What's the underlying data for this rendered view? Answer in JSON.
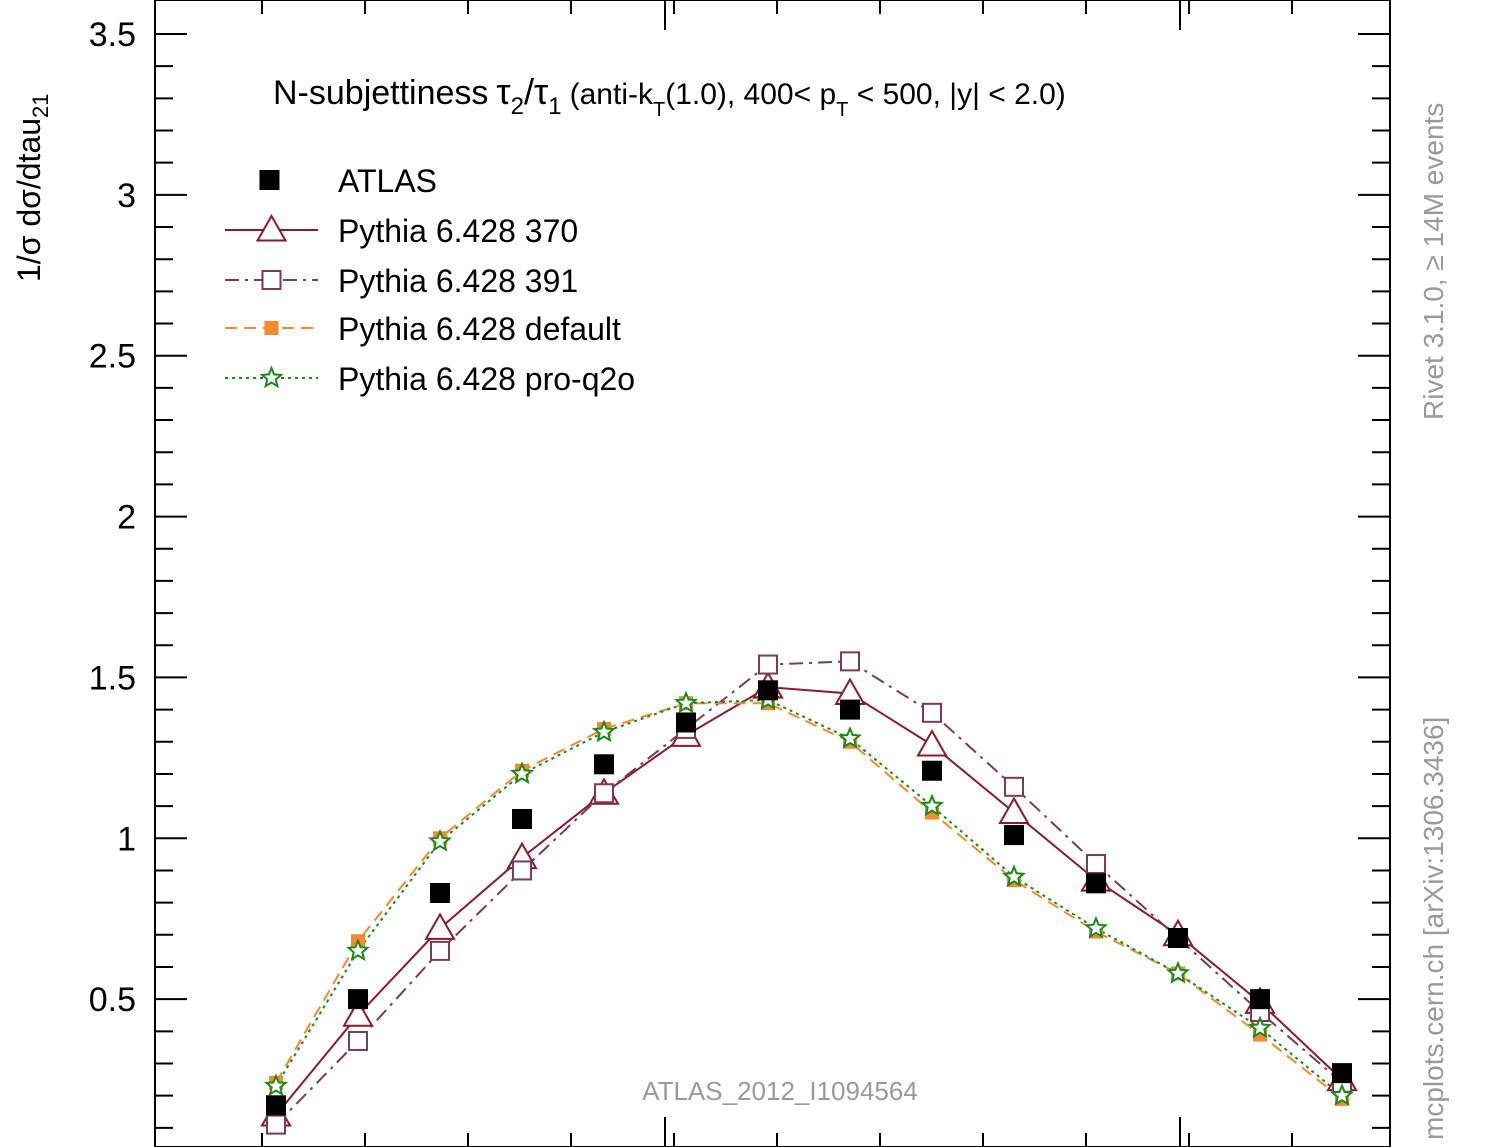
{
  "chart_data": {
    "type": "line",
    "title": "N-subjettiness",
    "title_detail": "(anti-k",
    "title_detail_2": "(1.0), 400< p",
    "title_detail_3": " < 500, |y| < 2.0)",
    "title_sub_T": "T",
    "title_tau2": "τ",
    "title_tau2_sub": "2",
    "title_slash": "/",
    "title_tau1": "τ",
    "title_tau1_sub": "1",
    "ylabel": "1/σ dσ/dtau",
    "ylabel_sub": "21",
    "ylim": [
      0.0,
      3.5
    ],
    "xlim": [
      0.0,
      1.0
    ],
    "y_ticks": [
      {
        "value": 0.5,
        "label": "0.5"
      },
      {
        "value": 1.0,
        "label": "1"
      },
      {
        "value": 1.5,
        "label": "1.5"
      },
      {
        "value": 2.0,
        "label": "2"
      },
      {
        "value": 2.5,
        "label": "2.5"
      },
      {
        "value": 3.0,
        "label": "3"
      },
      {
        "value": 3.5,
        "label": "3.5"
      }
    ],
    "legend_position": "top-left",
    "annotation": "ATLAS_2012_I1094564",
    "side_text_top": "Rivet 3.1.0, ≥ 14M events",
    "side_text_bottom": "mcplots.cern.ch [arXiv:1306.3436]",
    "series": [
      {
        "name": "ATLAS",
        "style": "data-square",
        "color": "#000000",
        "x": [
          0.05,
          0.1,
          0.15,
          0.2,
          0.25,
          0.3,
          0.35,
          0.4,
          0.45,
          0.5,
          0.55,
          0.6,
          0.65,
          0.7
        ],
        "values": [
          0.17,
          0.5,
          0.83,
          1.06,
          1.23,
          1.36,
          1.46,
          1.4,
          1.21,
          1.01,
          0.86,
          0.69,
          0.5,
          0.27
        ]
      },
      {
        "name": "Pythia 6.428 370",
        "style": "solid-triangle",
        "color": "#8b1a2b",
        "x": [
          0.05,
          0.1,
          0.15,
          0.2,
          0.25,
          0.3,
          0.35,
          0.4,
          0.45,
          0.5,
          0.55,
          0.6,
          0.65,
          0.7
        ],
        "values": [
          0.14,
          0.45,
          0.72,
          0.94,
          1.14,
          1.32,
          1.47,
          1.45,
          1.29,
          1.08,
          0.87,
          0.7,
          0.49,
          0.25
        ]
      },
      {
        "name": "Pythia 6.428 391",
        "style": "dashdot-opensquare",
        "color": "#7a3a5a",
        "x": [
          0.05,
          0.1,
          0.15,
          0.2,
          0.25,
          0.3,
          0.35,
          0.4,
          0.45,
          0.5,
          0.55,
          0.6,
          0.65,
          0.7
        ],
        "values": [
          0.11,
          0.37,
          0.65,
          0.9,
          1.14,
          1.34,
          1.54,
          1.55,
          1.39,
          1.16,
          0.92,
          0.69,
          0.46,
          0.24
        ]
      },
      {
        "name": "Pythia 6.428 default",
        "style": "dashed-filledsquare",
        "color": "#f58a2e",
        "x": [
          0.05,
          0.1,
          0.15,
          0.2,
          0.25,
          0.3,
          0.35,
          0.4,
          0.45,
          0.5,
          0.55,
          0.6,
          0.65,
          0.7
        ],
        "values": [
          0.24,
          0.68,
          1.0,
          1.21,
          1.34,
          1.42,
          1.42,
          1.3,
          1.08,
          0.87,
          0.71,
          0.58,
          0.39,
          0.19
        ]
      },
      {
        "name": "Pythia 6.428 pro-q2o",
        "style": "dotted-star",
        "color": "#1a8a1a",
        "x": [
          0.05,
          0.1,
          0.15,
          0.2,
          0.25,
          0.3,
          0.35,
          0.4,
          0.45,
          0.5,
          0.55,
          0.6,
          0.65,
          0.7
        ],
        "values": [
          0.23,
          0.65,
          0.99,
          1.2,
          1.33,
          1.42,
          1.43,
          1.31,
          1.1,
          0.88,
          0.72,
          0.58,
          0.41,
          0.2
        ]
      }
    ]
  }
}
